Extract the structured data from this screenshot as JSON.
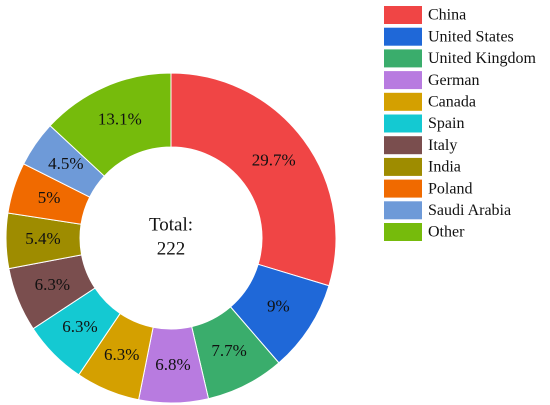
{
  "chart_data": {
    "type": "donut",
    "center_title": "Total:",
    "total": 222,
    "categories": [
      "China",
      "United States",
      "United Kingdom",
      "German",
      "Canada",
      "Spain",
      "Italy",
      "India",
      "Poland",
      "Saudi Arabia",
      "Other"
    ],
    "values": [
      29.7,
      9,
      7.7,
      6.8,
      6.3,
      6.3,
      6.3,
      5.4,
      5,
      4.5,
      13.1
    ],
    "value_labels": [
      "29.7%",
      "9%",
      "7.7%",
      "6.8%",
      "6.3%",
      "6.3%",
      "6.3%",
      "5.4%",
      "5%",
      "4.5%",
      "13.1%"
    ],
    "colors": [
      "#f04545",
      "#1f68d8",
      "#3aad6c",
      "#b87be0",
      "#d4a000",
      "#14c9d2",
      "#7a4e4e",
      "#9e8c00",
      "#f06a00",
      "#6e9ad8",
      "#76bb0c"
    ],
    "legend": "top-right"
  }
}
